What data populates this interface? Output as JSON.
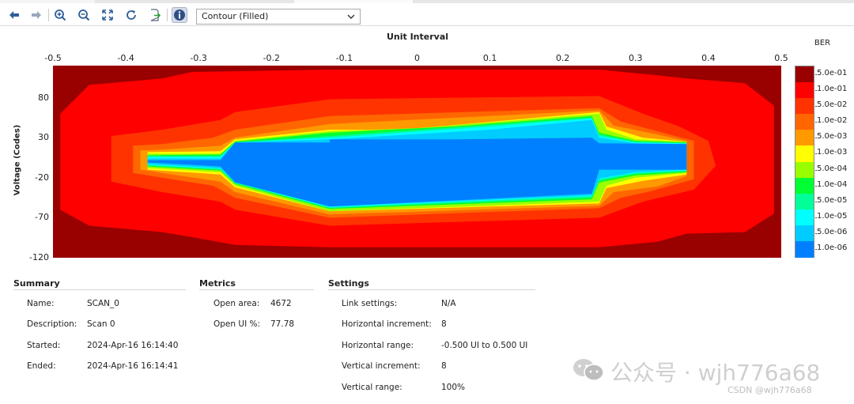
{
  "toolbar": {
    "view_select": "Contour (Filled)",
    "buttons": [
      "back-arrow",
      "forward-arrow",
      "zoom-in",
      "zoom-out",
      "fit-to-view",
      "refresh",
      "export",
      "info"
    ]
  },
  "chart_data": {
    "type": "heatmap",
    "subtype": "filled contour (eye scan)",
    "xlabel": "Unit Interval",
    "ylabel": "Voltage (Codes)",
    "colorbar_title": "BER",
    "xlim": [
      -0.5,
      0.5
    ],
    "ylim": [
      -120,
      120
    ],
    "x_ticks": [
      "-0.5",
      "-0.4",
      "-0.3",
      "-0.2",
      "-0.1",
      "0",
      "0.1",
      "0.2",
      "0.3",
      "0.4",
      "0.5"
    ],
    "y_ticks": [
      "80",
      "30",
      "-20",
      "-70",
      "-120"
    ],
    "legend_labels": [
      "5.0e-01",
      "1.0e-01",
      "5.0e-02",
      "1.0e-02",
      "5.0e-03",
      "1.0e-03",
      "5.0e-04",
      "1.0e-04",
      "5.0e-05",
      "1.0e-05",
      "5.0e-06",
      "1.0e-06"
    ],
    "legend_colors": [
      "#990000",
      "#ff0000",
      "#ff3300",
      "#ff6600",
      "#ff9900",
      "#ffff00",
      "#99ff00",
      "#00ff33",
      "#00ff99",
      "#00ffff",
      "#00ccff",
      "#0080ff"
    ],
    "contours": [
      {
        "level": "1.0e-01",
        "points": [
          [
            -0.45,
            96
          ],
          [
            -0.35,
            104
          ],
          [
            -0.31,
            112
          ],
          [
            -0.25,
            113
          ],
          [
            -0.12,
            115
          ],
          [
            0.25,
            115
          ],
          [
            0.33,
            108
          ],
          [
            0.37,
            104
          ],
          [
            0.45,
            98
          ],
          [
            0.49,
            70
          ],
          [
            0.49,
            -65
          ],
          [
            0.45,
            -88
          ],
          [
            0.37,
            -90
          ],
          [
            0.33,
            -100
          ],
          [
            0.25,
            -107
          ],
          [
            -0.12,
            -107
          ],
          [
            -0.25,
            -104
          ],
          [
            -0.31,
            -94
          ],
          [
            -0.35,
            -88
          ],
          [
            -0.45,
            -80
          ],
          [
            -0.49,
            -60
          ],
          [
            -0.49,
            60
          ]
        ]
      },
      {
        "level": "5.0e-02",
        "points": [
          [
            -0.42,
            32
          ],
          [
            -0.35,
            40
          ],
          [
            -0.27,
            52
          ],
          [
            -0.25,
            62
          ],
          [
            -0.12,
            78
          ],
          [
            0.25,
            82
          ],
          [
            0.31,
            60
          ],
          [
            0.36,
            44
          ],
          [
            0.4,
            26
          ],
          [
            0.41,
            -5
          ],
          [
            0.38,
            -35
          ],
          [
            0.31,
            -50
          ],
          [
            0.25,
            -70
          ],
          [
            -0.12,
            -80
          ],
          [
            -0.25,
            -60
          ],
          [
            -0.27,
            -50
          ],
          [
            -0.35,
            -38
          ],
          [
            -0.42,
            -25
          ]
        ]
      },
      {
        "level": "1.0e-02",
        "points": [
          [
            -0.39,
            20
          ],
          [
            -0.35,
            22
          ],
          [
            -0.28,
            30
          ],
          [
            -0.25,
            40
          ],
          [
            -0.12,
            57
          ],
          [
            0.25,
            67
          ],
          [
            0.28,
            50
          ],
          [
            0.33,
            38
          ],
          [
            0.38,
            26
          ],
          [
            0.38,
            -22
          ],
          [
            0.32,
            -37
          ],
          [
            0.28,
            -45
          ],
          [
            0.25,
            -58
          ],
          [
            -0.12,
            -70
          ],
          [
            -0.25,
            -45
          ],
          [
            -0.28,
            -30
          ],
          [
            -0.35,
            -20
          ],
          [
            -0.39,
            -14
          ]
        ]
      },
      {
        "level": "5.0e-03",
        "points": [
          [
            -0.38,
            14
          ],
          [
            -0.35,
            15
          ],
          [
            -0.27,
            20
          ],
          [
            -0.25,
            30
          ],
          [
            -0.12,
            47
          ],
          [
            0.25,
            64
          ],
          [
            0.27,
            45
          ],
          [
            0.33,
            34
          ],
          [
            0.37,
            26
          ],
          [
            0.37,
            -18
          ],
          [
            0.33,
            -31
          ],
          [
            0.27,
            -38
          ],
          [
            0.25,
            -55
          ],
          [
            -0.12,
            -66
          ],
          [
            -0.25,
            -38
          ],
          [
            -0.27,
            -25
          ],
          [
            -0.35,
            -14
          ],
          [
            -0.38,
            -10
          ]
        ]
      },
      {
        "level": "1.0e-03",
        "points": [
          [
            -0.37,
            12
          ],
          [
            -0.27,
            13
          ],
          [
            -0.25,
            28
          ],
          [
            -0.12,
            40
          ],
          [
            -0.02,
            40
          ],
          [
            0.25,
            62
          ],
          [
            0.26,
            44
          ],
          [
            0.31,
            30
          ],
          [
            0.37,
            25
          ],
          [
            0.37,
            -16
          ],
          [
            0.31,
            -24
          ],
          [
            0.26,
            -33
          ],
          [
            0.25,
            -52
          ],
          [
            -0.12,
            -62
          ],
          [
            -0.25,
            -32
          ],
          [
            -0.27,
            -16
          ],
          [
            -0.37,
            -10
          ]
        ]
      },
      {
        "level": "5.0e-04",
        "points": [
          [
            -0.37,
            10
          ],
          [
            -0.27,
            10
          ],
          [
            -0.25,
            26
          ],
          [
            -0.12,
            38
          ],
          [
            0.0,
            42
          ],
          [
            0.25,
            60
          ],
          [
            0.26,
            40
          ],
          [
            0.3,
            28
          ],
          [
            0.37,
            25
          ],
          [
            0.37,
            -14
          ],
          [
            0.3,
            -20
          ],
          [
            0.26,
            -30
          ],
          [
            0.25,
            -50
          ],
          [
            -0.12,
            -62
          ],
          [
            -0.25,
            -30
          ],
          [
            -0.27,
            -13
          ],
          [
            -0.37,
            -8
          ]
        ]
      },
      {
        "level": "1.0e-04",
        "points": [
          [
            -0.37,
            8
          ],
          [
            -0.27,
            9
          ],
          [
            -0.25,
            25
          ],
          [
            -0.12,
            36
          ],
          [
            0.05,
            44
          ],
          [
            0.24,
            57
          ],
          [
            0.25,
            36
          ],
          [
            0.3,
            26
          ],
          [
            0.37,
            24
          ],
          [
            0.37,
            -13
          ],
          [
            0.3,
            -17
          ],
          [
            0.25,
            -26
          ],
          [
            0.24,
            -47
          ],
          [
            -0.12,
            -59
          ],
          [
            -0.25,
            -28
          ],
          [
            -0.27,
            -11
          ],
          [
            -0.37,
            -6
          ]
        ]
      },
      {
        "level": "5.0e-05",
        "points": [
          [
            -0.37,
            7
          ],
          [
            -0.27,
            7
          ],
          [
            -0.25,
            24
          ],
          [
            -0.12,
            32
          ],
          [
            0.1,
            46
          ],
          [
            0.24,
            55
          ],
          [
            0.25,
            34
          ],
          [
            0.3,
            25
          ],
          [
            0.37,
            23
          ],
          [
            0.37,
            -12
          ],
          [
            0.3,
            -15
          ],
          [
            0.25,
            -24
          ],
          [
            0.24,
            -45
          ],
          [
            -0.12,
            -58
          ],
          [
            -0.25,
            -27
          ],
          [
            -0.27,
            -10
          ],
          [
            -0.37,
            -5
          ]
        ]
      },
      {
        "level": "1.0e-05",
        "points": [
          [
            -0.37,
            6
          ],
          [
            -0.27,
            6
          ],
          [
            -0.25,
            24
          ],
          [
            -0.12,
            30
          ],
          [
            0.1,
            44
          ],
          [
            0.24,
            54
          ],
          [
            0.25,
            32
          ],
          [
            0.3,
            24
          ],
          [
            0.37,
            23
          ],
          [
            0.37,
            -11
          ],
          [
            0.3,
            -14
          ],
          [
            0.25,
            -22
          ],
          [
            0.24,
            -43
          ],
          [
            -0.12,
            -57
          ],
          [
            -0.25,
            -26
          ],
          [
            -0.27,
            -9
          ],
          [
            -0.37,
            -4
          ]
        ]
      },
      {
        "level": "5.0e-06",
        "points": [
          [
            -0.37,
            4
          ],
          [
            -0.27,
            4
          ],
          [
            -0.25,
            24
          ],
          [
            -0.12,
            28
          ],
          [
            0.1,
            40
          ],
          [
            0.24,
            52
          ],
          [
            0.25,
            30
          ],
          [
            0.3,
            23
          ],
          [
            0.37,
            22
          ],
          [
            0.37,
            -10
          ],
          [
            0.3,
            -13
          ],
          [
            0.25,
            -21
          ],
          [
            0.24,
            -42
          ],
          [
            -0.12,
            -56
          ],
          [
            -0.25,
            -26
          ],
          [
            -0.27,
            -8
          ],
          [
            -0.37,
            -3
          ]
        ]
      },
      {
        "level": "1.0e-06",
        "points": [
          [
            -0.37,
            2
          ],
          [
            -0.27,
            2
          ],
          [
            -0.25,
            24
          ],
          [
            -0.12,
            24
          ],
          [
            -0.12,
            28
          ],
          [
            0.05,
            28
          ],
          [
            0.24,
            30
          ],
          [
            0.25,
            23
          ],
          [
            0.37,
            22
          ],
          [
            0.37,
            -10
          ],
          [
            0.25,
            -10
          ],
          [
            0.24,
            -40
          ],
          [
            -0.12,
            -56
          ],
          [
            -0.25,
            -26
          ],
          [
            -0.27,
            -6
          ],
          [
            -0.37,
            -1
          ]
        ]
      }
    ]
  },
  "summary": {
    "title": "Summary",
    "rows": [
      {
        "label": "Name:",
        "value": "SCAN_0"
      },
      {
        "label": "Description:",
        "value": "Scan 0"
      },
      {
        "label": "Started:",
        "value": "2024-Apr-16 16:14:40"
      },
      {
        "label": "Ended:",
        "value": "2024-Apr-16 16:14:41"
      }
    ]
  },
  "metrics": {
    "title": "Metrics",
    "rows": [
      {
        "label": "Open area:",
        "value": "4672"
      },
      {
        "label": "Open UI %:",
        "value": "77.78"
      }
    ]
  },
  "settings": {
    "title": "Settings",
    "rows": [
      {
        "label": "Link settings:",
        "value": "N/A"
      },
      {
        "label": "Horizontal increment:",
        "value": "8"
      },
      {
        "label": "Horizontal range:",
        "value": "-0.500 UI to 0.500 UI"
      },
      {
        "label": "Vertical increment:",
        "value": "8"
      },
      {
        "label": "Vertical range:",
        "value": "100%"
      }
    ]
  },
  "watermark": {
    "text": "公众号 · wjh776a68",
    "csdn": "CSDN @wjh776a68"
  }
}
